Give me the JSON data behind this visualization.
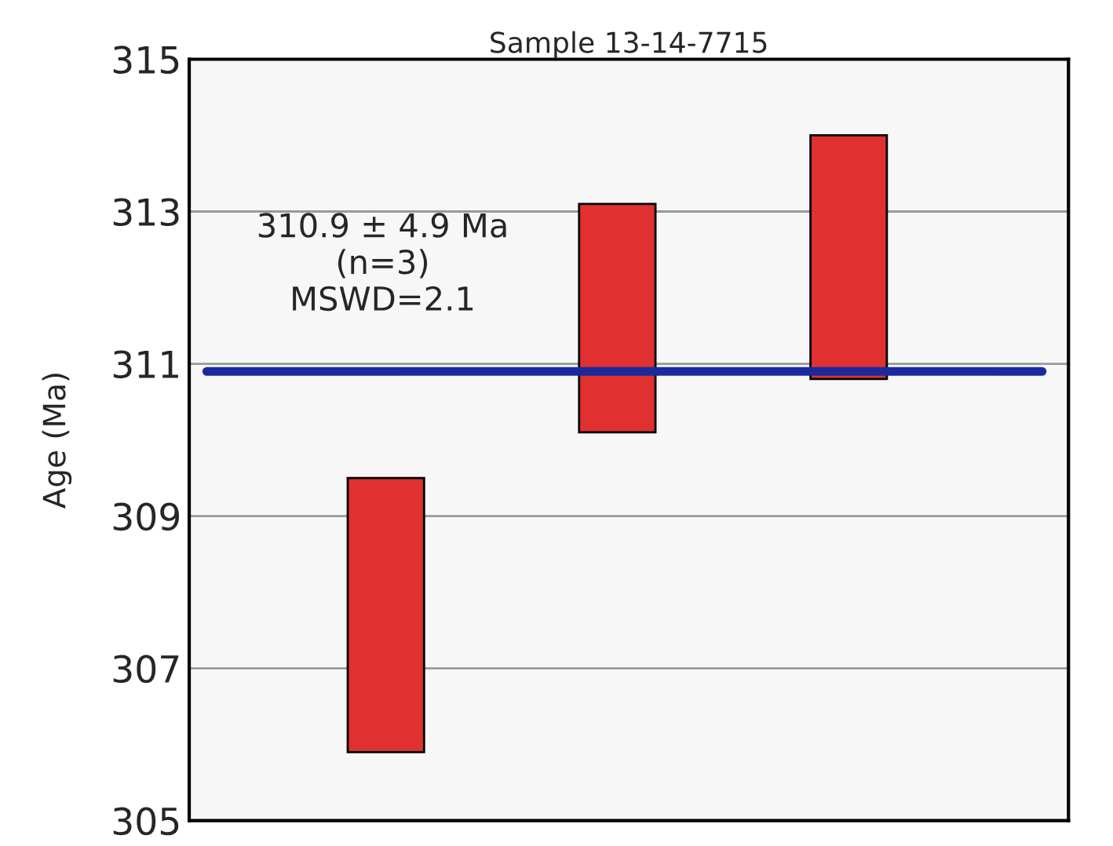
{
  "chart_data": {
    "type": "bar",
    "title": "Sample 13-14-7715",
    "ylabel": "Age (Ma)",
    "categories": [
      null,
      null,
      null
    ],
    "base": [
      305.9,
      310.1,
      310.8
    ],
    "values": [
      3.6,
      3.0,
      3.2
    ],
    "color": "#e03030",
    "ylim": [
      305,
      315
    ],
    "yticks": [
      305,
      307,
      309,
      311,
      313,
      315
    ],
    "grid": "y",
    "ref_lines": [
      {
        "axis": "y",
        "value": 310.9,
        "color": "#1a2a9c"
      }
    ],
    "annotations": [
      "310.9 ± 4.9 Ma\n(n=3)\nMSWD=2.1"
    ]
  }
}
